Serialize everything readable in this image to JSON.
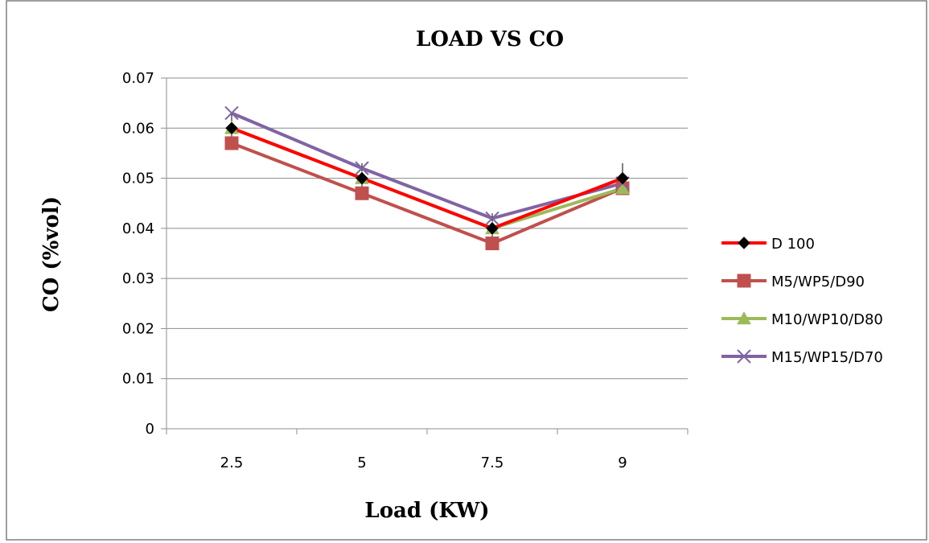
{
  "chart_data": {
    "type": "line",
    "title": "LOAD VS CO",
    "xlabel": "Load (KW)",
    "ylabel": "CO (%vol)",
    "categories": [
      "2.5",
      "5",
      "7.5",
      "9"
    ],
    "ylim": [
      0,
      0.07
    ],
    "yticks": [
      0,
      0.01,
      0.02,
      0.03,
      0.04,
      0.05,
      0.06,
      0.07
    ],
    "ytick_labels": [
      "0",
      "0.01",
      "0.02",
      "0.03",
      "0.04",
      "0.05",
      "0.06",
      "0.07"
    ],
    "grid": true,
    "legend_position": "right",
    "error_bars": true,
    "series": [
      {
        "name": "D 100",
        "values": [
          0.06,
          0.05,
          0.04,
          0.05
        ],
        "color": "#ff0000",
        "marker": "diamond",
        "marker_color": "#000000"
      },
      {
        "name": "M5/WP5/D90",
        "values": [
          0.057,
          0.047,
          0.037,
          0.048
        ],
        "color": "#c0504d",
        "marker": "square",
        "marker_color": "#c0504d"
      },
      {
        "name": "M10/WP10/D80",
        "values": [
          0.06,
          0.05,
          0.04,
          0.048
        ],
        "color": "#9bbb59",
        "marker": "triangle",
        "marker_color": "#9bbb59"
      },
      {
        "name": "M15/WP15/D70",
        "values": [
          0.063,
          0.052,
          0.042,
          0.049
        ],
        "color": "#8064a2",
        "marker": "x",
        "marker_color": "#8064a2"
      }
    ]
  }
}
